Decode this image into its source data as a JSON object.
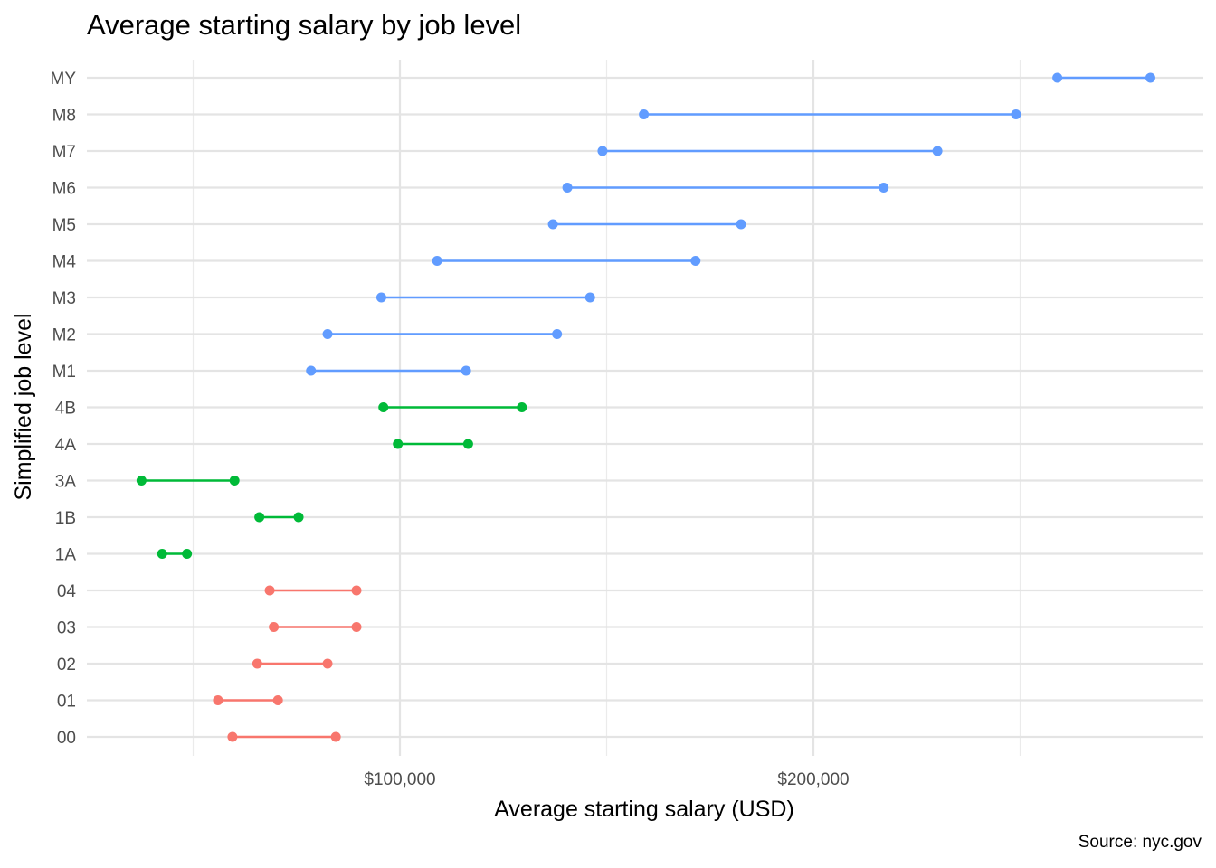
{
  "chart_data": {
    "type": "dumbbell",
    "title": "Average starting salary by job level",
    "xlabel": "Average starting salary (USD)",
    "ylabel": "Simplified job level",
    "caption": "Source: nyc.gov",
    "xlim": [
      30000,
      285000
    ],
    "x_ticks": [
      100000,
      200000
    ],
    "x_tick_labels": [
      "$100,000",
      "$200,000"
    ],
    "grid": true,
    "categories": [
      "00",
      "01",
      "02",
      "03",
      "04",
      "1A",
      "1B",
      "3A",
      "4A",
      "4B",
      "M1",
      "M2",
      "M3",
      "M4",
      "M5",
      "M6",
      "M7",
      "M8",
      "MY"
    ],
    "groups": [
      {
        "color": "#F8766D",
        "levels": [
          "00",
          "01",
          "02",
          "03",
          "04"
        ]
      },
      {
        "color": "#00BA38",
        "levels": [
          "1A",
          "1B",
          "3A",
          "4A",
          "4B"
        ]
      },
      {
        "color": "#619CFF",
        "levels": [
          "M1",
          "M2",
          "M3",
          "M4",
          "M5",
          "M6",
          "M7",
          "M8",
          "MY"
        ]
      }
    ],
    "data": [
      {
        "level": "00",
        "low": 59500,
        "high": 84500
      },
      {
        "level": "01",
        "low": 56000,
        "high": 70500
      },
      {
        "level": "02",
        "low": 65500,
        "high": 82500
      },
      {
        "level": "03",
        "low": 69500,
        "high": 89500
      },
      {
        "level": "04",
        "low": 68500,
        "high": 89500
      },
      {
        "level": "1A",
        "low": 42500,
        "high": 48500
      },
      {
        "level": "1B",
        "low": 66000,
        "high": 75500
      },
      {
        "level": "3A",
        "low": 37500,
        "high": 60000
      },
      {
        "level": "4A",
        "low": 99500,
        "high": 116500
      },
      {
        "level": "4B",
        "low": 96000,
        "high": 129500
      },
      {
        "level": "M1",
        "low": 78500,
        "high": 116000
      },
      {
        "level": "M2",
        "low": 82500,
        "high": 138000
      },
      {
        "level": "M3",
        "low": 95500,
        "high": 146000
      },
      {
        "level": "M4",
        "low": 109000,
        "high": 171500
      },
      {
        "level": "M5",
        "low": 137000,
        "high": 182500
      },
      {
        "level": "M6",
        "low": 140500,
        "high": 217000
      },
      {
        "level": "M7",
        "low": 149000,
        "high": 230000
      },
      {
        "level": "M8",
        "low": 159000,
        "high": 249000
      },
      {
        "level": "MY",
        "low": 259000,
        "high": 281500
      }
    ]
  }
}
